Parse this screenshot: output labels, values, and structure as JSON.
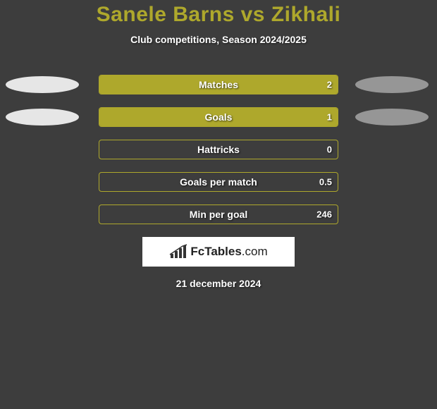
{
  "title": "Sanele Barns vs Zikhali",
  "subtitle": "Club competitions, Season 2024/2025",
  "date": "21 december 2024",
  "logo": {
    "text_bold": "FcTables",
    "text_light": ".com"
  },
  "colors": {
    "background": "#3d3d3d",
    "accent": "#aea82c",
    "left_ellipse": "#e6e6e6",
    "right_ellipse": "#969696",
    "bar_border": "#aea82c",
    "bar_left_fill": "#aea82c",
    "bar_right_fill": "#aea82c",
    "text": "#ffffff"
  },
  "rows": [
    {
      "label": "Matches",
      "left_val": "",
      "right_val": "2",
      "left_pct": 100,
      "right_pct": 0,
      "show_ellipses": true
    },
    {
      "label": "Goals",
      "left_val": "",
      "right_val": "1",
      "left_pct": 100,
      "right_pct": 0,
      "show_ellipses": true
    },
    {
      "label": "Hattricks",
      "left_val": "",
      "right_val": "0",
      "left_pct": 0,
      "right_pct": 0,
      "show_ellipses": false
    },
    {
      "label": "Goals per match",
      "left_val": "",
      "right_val": "0.5",
      "left_pct": 0,
      "right_pct": 0,
      "show_ellipses": false
    },
    {
      "label": "Min per goal",
      "left_val": "",
      "right_val": "246",
      "left_pct": 0,
      "right_pct": 0,
      "show_ellipses": false
    }
  ]
}
